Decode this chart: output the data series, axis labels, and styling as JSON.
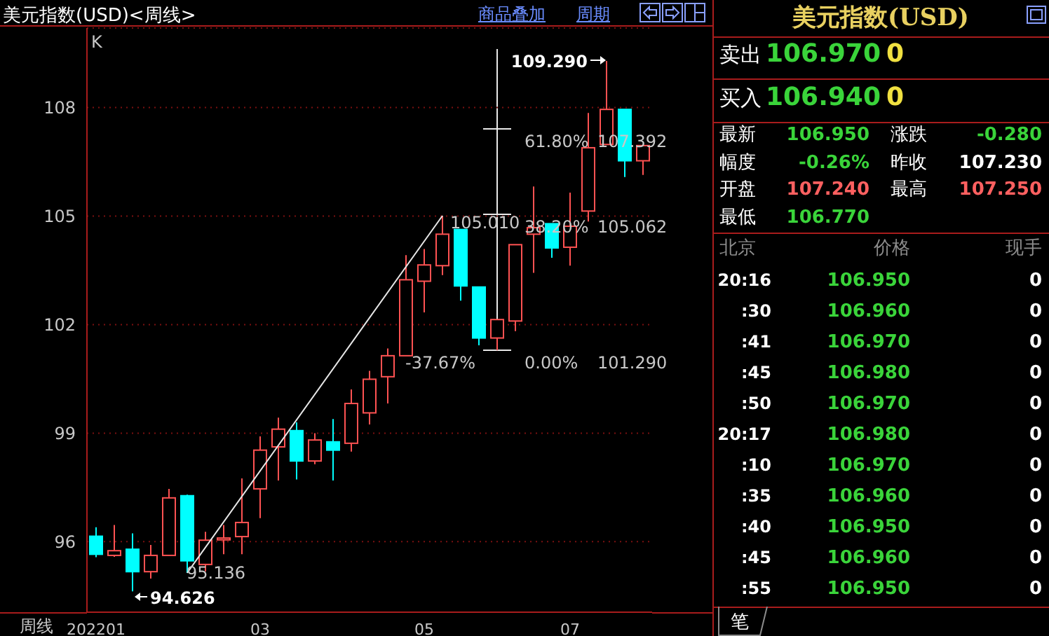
{
  "chart_data": [
    {
      "type": "candlestick",
      "title": "美元指数(USD)<周线>",
      "categories": [
        "202201",
        null,
        null,
        null,
        null,
        null,
        null,
        null,
        null,
        "03",
        null,
        null,
        null,
        null,
        null,
        null,
        null,
        null,
        "05",
        null,
        null,
        null,
        null,
        null,
        null,
        null,
        "07",
        null,
        null,
        null,
        null
      ],
      "ohlc": [
        [
          96.15,
          96.4,
          95.57,
          95.65
        ],
        [
          95.62,
          96.46,
          95.58,
          95.75
        ],
        [
          95.79,
          96.23,
          94.626,
          95.17
        ],
        [
          95.17,
          95.91,
          94.98,
          95.62
        ],
        [
          95.62,
          97.46,
          95.62,
          97.21
        ],
        [
          97.27,
          97.3,
          95.136,
          95.47
        ],
        [
          95.37,
          96.27,
          95.18,
          96.04
        ],
        [
          96.05,
          96.46,
          95.65,
          96.1
        ],
        [
          96.14,
          97.75,
          95.65,
          96.53
        ],
        [
          97.46,
          98.91,
          96.65,
          98.53
        ],
        [
          98.62,
          99.43,
          97.69,
          99.11
        ],
        [
          99.07,
          99.3,
          97.72,
          98.23
        ],
        [
          98.23,
          99.0,
          98.14,
          98.81
        ],
        [
          98.76,
          99.39,
          97.69,
          98.53
        ],
        [
          98.72,
          100.21,
          98.49,
          99.82
        ],
        [
          99.56,
          100.72,
          99.24,
          100.49
        ],
        [
          100.56,
          101.34,
          99.82,
          101.14
        ],
        [
          101.14,
          103.92,
          101.14,
          103.24
        ],
        [
          103.2,
          104.09,
          102.34,
          103.65
        ],
        [
          103.63,
          105.01,
          103.37,
          104.5
        ],
        [
          104.63,
          104.63,
          102.66,
          103.07
        ],
        [
          103.04,
          103.04,
          101.43,
          101.63
        ],
        [
          101.63,
          102.14,
          101.29,
          102.14
        ],
        [
          102.1,
          104.21,
          101.82,
          104.21
        ],
        [
          104.5,
          105.82,
          103.43,
          104.68
        ],
        [
          104.79,
          104.79,
          103.85,
          104.12
        ],
        [
          104.14,
          105.65,
          103.63,
          104.72
        ],
        [
          105.14,
          107.85,
          104.85,
          106.89
        ],
        [
          106.98,
          109.29,
          106.98,
          107.95
        ],
        [
          107.95,
          107.95,
          106.08,
          106.53
        ],
        [
          106.53,
          106.95,
          106.14,
          106.95
        ]
      ],
      "colors": [
        "#00ffff",
        "#ff5252",
        "#00ffff",
        "#ff5252",
        "#ff5252",
        "#00ffff",
        "#ff5252",
        "#ff5252",
        "#ff5252",
        "#ff5252",
        "#ff5252",
        "#00ffff",
        "#ff5252",
        "#00ffff",
        "#ff5252",
        "#ff5252",
        "#ff5252",
        "#ff5252",
        "#ff5252",
        "#ff5252",
        "#00ffff",
        "#00ffff",
        "#ff5252",
        "#ff5252",
        "#ff5252",
        "#00ffff",
        "#ff5252",
        "#ff5252",
        "#ff5252",
        "#00ffff",
        "#ff5252"
      ],
      "series": [
        {
          "type": "line",
          "color": "#e8e8e8",
          "values": [
            null,
            null,
            null,
            null,
            null,
            95.136,
            null,
            null,
            null,
            null,
            null,
            null,
            null,
            null,
            null,
            null,
            null,
            null,
            null,
            105.01,
            null,
            null,
            null,
            null,
            null,
            null,
            null,
            null,
            null,
            null,
            null
          ]
        }
      ],
      "ylim": [
        94.05,
        110.2
      ],
      "yticks": [
        96,
        99,
        102,
        105,
        108
      ],
      "grid": "y",
      "annotations": [
        "K",
        "109.290",
        "94.626",
        "95.136",
        "105.010",
        "-37.67%",
        "61.80%",
        "107.392",
        "38.20%",
        "105.062",
        "0.00%",
        "101.290",
        "周线",
        "商品叠加",
        "周期"
      ]
    },
    {
      "type": "other",
      "title": "美元指数(USD)",
      "annotations": [
        "卖出",
        "106.970",
        "0",
        "买入",
        "106.940",
        "0",
        "最新",
        "106.950",
        "涨跌",
        "-0.280",
        "幅度",
        "-0.26%",
        "昨收",
        "107.230",
        "开盘",
        "107.240",
        "最高",
        "107.250",
        "最低",
        "106.770",
        "北京",
        "价格",
        "现手",
        "20:16",
        "106.950",
        "0",
        ":30",
        "106.960",
        "0",
        ":41",
        "106.970",
        "0",
        ":45",
        "106.980",
        "0",
        ":50",
        "106.970",
        "0",
        "20:17",
        "106.980",
        "0",
        ":10",
        "106.970",
        "0",
        ":35",
        "106.960",
        "0",
        ":40",
        "106.950",
        "0",
        ":45",
        "106.960",
        "0",
        ":55",
        "106.950",
        "0",
        "笔"
      ]
    }
  ]
}
